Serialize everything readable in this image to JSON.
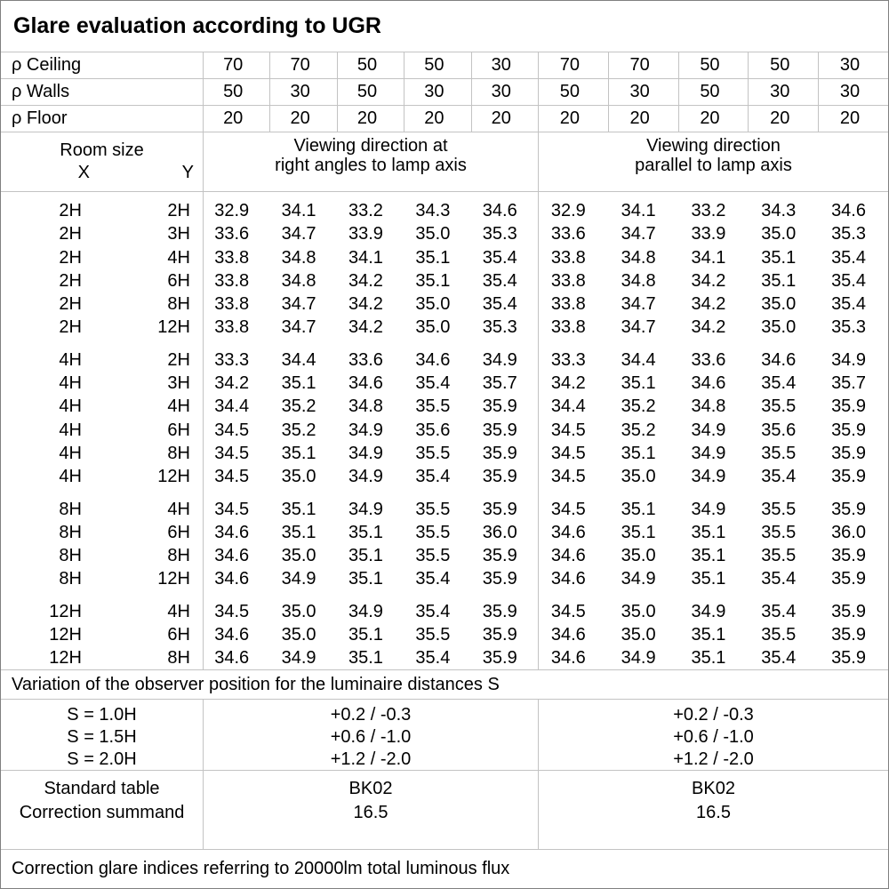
{
  "title": "Glare evaluation according to UGR",
  "reflectances": [
    {
      "label": "ρ Ceiling",
      "values": [
        "70",
        "70",
        "50",
        "50",
        "30",
        "70",
        "70",
        "50",
        "50",
        "30"
      ]
    },
    {
      "label": "ρ Walls",
      "values": [
        "50",
        "30",
        "50",
        "30",
        "30",
        "50",
        "30",
        "50",
        "30",
        "30"
      ]
    },
    {
      "label": "ρ Floor",
      "values": [
        "20",
        "20",
        "20",
        "20",
        "20",
        "20",
        "20",
        "20",
        "20",
        "20"
      ]
    }
  ],
  "room_size": {
    "title": "Room size",
    "x_label": "X",
    "y_label": "Y"
  },
  "groups": [
    {
      "line1": "Viewing direction at",
      "line2": "right angles to lamp axis"
    },
    {
      "line1": "Viewing direction",
      "line2": "parallel to lamp axis"
    }
  ],
  "blocks": [
    {
      "rows": [
        {
          "x": "2H",
          "y": "2H",
          "v": [
            "32.9",
            "34.1",
            "33.2",
            "34.3",
            "34.6",
            "32.9",
            "34.1",
            "33.2",
            "34.3",
            "34.6"
          ]
        },
        {
          "x": "2H",
          "y": "3H",
          "v": [
            "33.6",
            "34.7",
            "33.9",
            "35.0",
            "35.3",
            "33.6",
            "34.7",
            "33.9",
            "35.0",
            "35.3"
          ]
        },
        {
          "x": "2H",
          "y": "4H",
          "v": [
            "33.8",
            "34.8",
            "34.1",
            "35.1",
            "35.4",
            "33.8",
            "34.8",
            "34.1",
            "35.1",
            "35.4"
          ]
        },
        {
          "x": "2H",
          "y": "6H",
          "v": [
            "33.8",
            "34.8",
            "34.2",
            "35.1",
            "35.4",
            "33.8",
            "34.8",
            "34.2",
            "35.1",
            "35.4"
          ]
        },
        {
          "x": "2H",
          "y": "8H",
          "v": [
            "33.8",
            "34.7",
            "34.2",
            "35.0",
            "35.4",
            "33.8",
            "34.7",
            "34.2",
            "35.0",
            "35.4"
          ]
        },
        {
          "x": "2H",
          "y": "12H",
          "v": [
            "33.8",
            "34.7",
            "34.2",
            "35.0",
            "35.3",
            "33.8",
            "34.7",
            "34.2",
            "35.0",
            "35.3"
          ]
        }
      ]
    },
    {
      "rows": [
        {
          "x": "4H",
          "y": "2H",
          "v": [
            "33.3",
            "34.4",
            "33.6",
            "34.6",
            "34.9",
            "33.3",
            "34.4",
            "33.6",
            "34.6",
            "34.9"
          ]
        },
        {
          "x": "4H",
          "y": "3H",
          "v": [
            "34.2",
            "35.1",
            "34.6",
            "35.4",
            "35.7",
            "34.2",
            "35.1",
            "34.6",
            "35.4",
            "35.7"
          ]
        },
        {
          "x": "4H",
          "y": "4H",
          "v": [
            "34.4",
            "35.2",
            "34.8",
            "35.5",
            "35.9",
            "34.4",
            "35.2",
            "34.8",
            "35.5",
            "35.9"
          ]
        },
        {
          "x": "4H",
          "y": "6H",
          "v": [
            "34.5",
            "35.2",
            "34.9",
            "35.6",
            "35.9",
            "34.5",
            "35.2",
            "34.9",
            "35.6",
            "35.9"
          ]
        },
        {
          "x": "4H",
          "y": "8H",
          "v": [
            "34.5",
            "35.1",
            "34.9",
            "35.5",
            "35.9",
            "34.5",
            "35.1",
            "34.9",
            "35.5",
            "35.9"
          ]
        },
        {
          "x": "4H",
          "y": "12H",
          "v": [
            "34.5",
            "35.0",
            "34.9",
            "35.4",
            "35.9",
            "34.5",
            "35.0",
            "34.9",
            "35.4",
            "35.9"
          ]
        }
      ]
    },
    {
      "rows": [
        {
          "x": "8H",
          "y": "4H",
          "v": [
            "34.5",
            "35.1",
            "34.9",
            "35.5",
            "35.9",
            "34.5",
            "35.1",
            "34.9",
            "35.5",
            "35.9"
          ]
        },
        {
          "x": "8H",
          "y": "6H",
          "v": [
            "34.6",
            "35.1",
            "35.1",
            "35.5",
            "36.0",
            "34.6",
            "35.1",
            "35.1",
            "35.5",
            "36.0"
          ]
        },
        {
          "x": "8H",
          "y": "8H",
          "v": [
            "34.6",
            "35.0",
            "35.1",
            "35.5",
            "35.9",
            "34.6",
            "35.0",
            "35.1",
            "35.5",
            "35.9"
          ]
        },
        {
          "x": "8H",
          "y": "12H",
          "v": [
            "34.6",
            "34.9",
            "35.1",
            "35.4",
            "35.9",
            "34.6",
            "34.9",
            "35.1",
            "35.4",
            "35.9"
          ]
        }
      ]
    },
    {
      "rows": [
        {
          "x": "12H",
          "y": "4H",
          "v": [
            "34.5",
            "35.0",
            "34.9",
            "35.4",
            "35.9",
            "34.5",
            "35.0",
            "34.9",
            "35.4",
            "35.9"
          ]
        },
        {
          "x": "12H",
          "y": "6H",
          "v": [
            "34.6",
            "35.0",
            "35.1",
            "35.5",
            "35.9",
            "34.6",
            "35.0",
            "35.1",
            "35.5",
            "35.9"
          ]
        },
        {
          "x": "12H",
          "y": "8H",
          "v": [
            "34.6",
            "34.9",
            "35.1",
            "35.4",
            "35.9",
            "34.6",
            "34.9",
            "35.1",
            "35.4",
            "35.9"
          ]
        }
      ]
    }
  ],
  "variation_note": "Variation of the observer position for the luminaire distances S",
  "s_rows": [
    {
      "label": "S = 1.0H",
      "left": "+0.2 / -0.3",
      "right": "+0.2 / -0.3"
    },
    {
      "label": "S = 1.5H",
      "left": "+0.6 / -1.0",
      "right": "+0.6 / -1.0"
    },
    {
      "label": "S = 2.0H",
      "left": "+1.2 / -2.0",
      "right": "+1.2 / -2.0"
    }
  ],
  "standard_rows": [
    {
      "label": "Standard table",
      "left": "BK02",
      "right": "BK02"
    },
    {
      "label": "Correction summand",
      "left": "16.5",
      "right": "16.5"
    }
  ],
  "footer_note": "Correction glare indices referring to 20000lm total luminous flux",
  "colors": {
    "grid": "#c3c3c3",
    "border": "#808080",
    "text": "#000000",
    "background": "#ffffff"
  }
}
